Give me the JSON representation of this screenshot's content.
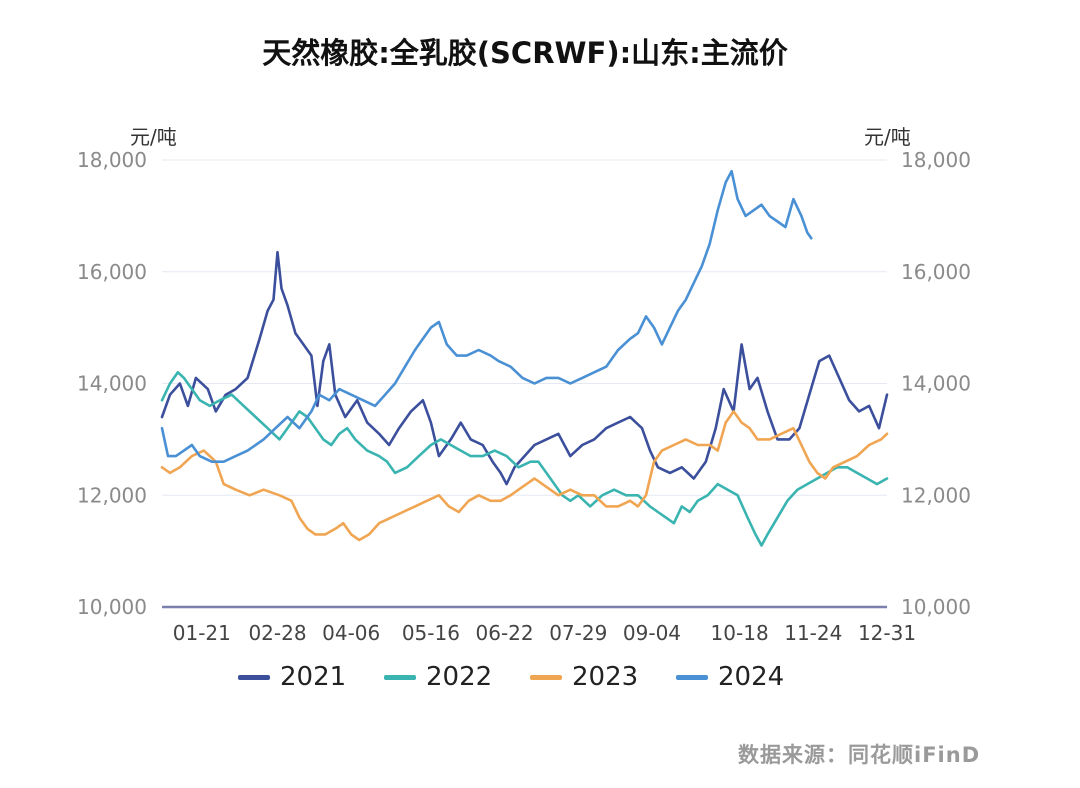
{
  "chart_data": {
    "type": "line",
    "title": "天然橡胶:全乳胶(SCRWF):山东:主流价",
    "ylabel_left": "元/吨",
    "ylabel_right": "元/吨",
    "ylim": [
      10000,
      18000
    ],
    "yticks": [
      "10,000",
      "12,000",
      "14,000",
      "16,000",
      "18,000"
    ],
    "x_tick_labels": [
      "01-21",
      "02-28",
      "04-06",
      "05-16",
      "06-22",
      "07-29",
      "09-04",
      "10-18",
      "11-24",
      "12-31"
    ],
    "x_tick_day": [
      21,
      59,
      96,
      136,
      173,
      210,
      247,
      291,
      328,
      365
    ],
    "x_domain_days": [
      1,
      365
    ],
    "grid": "horizontal",
    "legend_position": "bottom",
    "series": [
      {
        "name": "2021",
        "color": "#3b4f9c",
        "points": [
          [
            1,
            13400
          ],
          [
            5,
            13800
          ],
          [
            10,
            14000
          ],
          [
            14,
            13600
          ],
          [
            18,
            14100
          ],
          [
            24,
            13900
          ],
          [
            28,
            13500
          ],
          [
            33,
            13800
          ],
          [
            38,
            13900
          ],
          [
            44,
            14100
          ],
          [
            50,
            14800
          ],
          [
            54,
            15300
          ],
          [
            57,
            15500
          ],
          [
            59,
            16350
          ],
          [
            61,
            15700
          ],
          [
            64,
            15400
          ],
          [
            68,
            14900
          ],
          [
            72,
            14700
          ],
          [
            76,
            14500
          ],
          [
            79,
            13600
          ],
          [
            82,
            14400
          ],
          [
            85,
            14700
          ],
          [
            88,
            13800
          ],
          [
            93,
            13400
          ],
          [
            99,
            13700
          ],
          [
            104,
            13300
          ],
          [
            110,
            13100
          ],
          [
            115,
            12900
          ],
          [
            120,
            13200
          ],
          [
            126,
            13500
          ],
          [
            132,
            13700
          ],
          [
            136,
            13300
          ],
          [
            140,
            12700
          ],
          [
            146,
            13000
          ],
          [
            151,
            13300
          ],
          [
            156,
            13000
          ],
          [
            162,
            12900
          ],
          [
            167,
            12600
          ],
          [
            171,
            12400
          ],
          [
            174,
            12200
          ],
          [
            178,
            12500
          ],
          [
            183,
            12700
          ],
          [
            188,
            12900
          ],
          [
            194,
            13000
          ],
          [
            200,
            13100
          ],
          [
            206,
            12700
          ],
          [
            212,
            12900
          ],
          [
            218,
            13000
          ],
          [
            224,
            13200
          ],
          [
            230,
            13300
          ],
          [
            236,
            13400
          ],
          [
            242,
            13200
          ],
          [
            246,
            12800
          ],
          [
            250,
            12500
          ],
          [
            256,
            12400
          ],
          [
            262,
            12500
          ],
          [
            268,
            12300
          ],
          [
            274,
            12600
          ],
          [
            279,
            13200
          ],
          [
            283,
            13900
          ],
          [
            288,
            13500
          ],
          [
            292,
            14700
          ],
          [
            296,
            13900
          ],
          [
            300,
            14100
          ],
          [
            305,
            13500
          ],
          [
            310,
            13000
          ],
          [
            316,
            13000
          ],
          [
            321,
            13200
          ],
          [
            326,
            13800
          ],
          [
            331,
            14400
          ],
          [
            336,
            14500
          ],
          [
            341,
            14100
          ],
          [
            346,
            13700
          ],
          [
            351,
            13500
          ],
          [
            356,
            13600
          ],
          [
            361,
            13200
          ],
          [
            365,
            13800
          ]
        ]
      },
      {
        "name": "2022",
        "color": "#3ab4b0",
        "points": [
          [
            1,
            13700
          ],
          [
            5,
            14000
          ],
          [
            9,
            14200
          ],
          [
            12,
            14100
          ],
          [
            16,
            13900
          ],
          [
            20,
            13700
          ],
          [
            25,
            13600
          ],
          [
            30,
            13700
          ],
          [
            36,
            13800
          ],
          [
            42,
            13600
          ],
          [
            48,
            13400
          ],
          [
            54,
            13200
          ],
          [
            60,
            13000
          ],
          [
            66,
            13300
          ],
          [
            70,
            13500
          ],
          [
            74,
            13400
          ],
          [
            78,
            13200
          ],
          [
            82,
            13000
          ],
          [
            86,
            12900
          ],
          [
            90,
            13100
          ],
          [
            94,
            13200
          ],
          [
            98,
            13000
          ],
          [
            104,
            12800
          ],
          [
            110,
            12700
          ],
          [
            114,
            12600
          ],
          [
            118,
            12400
          ],
          [
            124,
            12500
          ],
          [
            130,
            12700
          ],
          [
            136,
            12900
          ],
          [
            141,
            13000
          ],
          [
            146,
            12900
          ],
          [
            151,
            12800
          ],
          [
            156,
            12700
          ],
          [
            162,
            12700
          ],
          [
            168,
            12800
          ],
          [
            174,
            12700
          ],
          [
            180,
            12500
          ],
          [
            186,
            12600
          ],
          [
            190,
            12600
          ],
          [
            194,
            12400
          ],
          [
            198,
            12200
          ],
          [
            202,
            12000
          ],
          [
            206,
            11900
          ],
          [
            210,
            12000
          ],
          [
            216,
            11800
          ],
          [
            222,
            12000
          ],
          [
            228,
            12100
          ],
          [
            234,
            12000
          ],
          [
            240,
            12000
          ],
          [
            246,
            11800
          ],
          [
            250,
            11700
          ],
          [
            254,
            11600
          ],
          [
            258,
            11500
          ],
          [
            262,
            11800
          ],
          [
            266,
            11700
          ],
          [
            270,
            11900
          ],
          [
            275,
            12000
          ],
          [
            280,
            12200
          ],
          [
            285,
            12100
          ],
          [
            290,
            12000
          ],
          [
            295,
            11600
          ],
          [
            299,
            11300
          ],
          [
            302,
            11100
          ],
          [
            305,
            11300
          ],
          [
            310,
            11600
          ],
          [
            315,
            11900
          ],
          [
            320,
            12100
          ],
          [
            325,
            12200
          ],
          [
            330,
            12300
          ],
          [
            335,
            12400
          ],
          [
            340,
            12500
          ],
          [
            345,
            12500
          ],
          [
            350,
            12400
          ],
          [
            355,
            12300
          ],
          [
            360,
            12200
          ],
          [
            365,
            12300
          ]
        ]
      },
      {
        "name": "2023",
        "color": "#f0a552",
        "points": [
          [
            1,
            12500
          ],
          [
            5,
            12400
          ],
          [
            10,
            12500
          ],
          [
            16,
            12700
          ],
          [
            22,
            12800
          ],
          [
            28,
            12600
          ],
          [
            32,
            12200
          ],
          [
            38,
            12100
          ],
          [
            45,
            12000
          ],
          [
            52,
            12100
          ],
          [
            60,
            12000
          ],
          [
            66,
            11900
          ],
          [
            70,
            11600
          ],
          [
            74,
            11400
          ],
          [
            78,
            11300
          ],
          [
            83,
            11300
          ],
          [
            88,
            11400
          ],
          [
            92,
            11500
          ],
          [
            96,
            11300
          ],
          [
            100,
            11200
          ],
          [
            105,
            11300
          ],
          [
            110,
            11500
          ],
          [
            116,
            11600
          ],
          [
            122,
            11700
          ],
          [
            128,
            11800
          ],
          [
            134,
            11900
          ],
          [
            140,
            12000
          ],
          [
            145,
            11800
          ],
          [
            150,
            11700
          ],
          [
            155,
            11900
          ],
          [
            160,
            12000
          ],
          [
            166,
            11900
          ],
          [
            171,
            11900
          ],
          [
            176,
            12000
          ],
          [
            180,
            12100
          ],
          [
            184,
            12200
          ],
          [
            188,
            12300
          ],
          [
            192,
            12200
          ],
          [
            196,
            12100
          ],
          [
            200,
            12000
          ],
          [
            206,
            12100
          ],
          [
            212,
            12000
          ],
          [
            218,
            12000
          ],
          [
            224,
            11800
          ],
          [
            230,
            11800
          ],
          [
            236,
            11900
          ],
          [
            240,
            11800
          ],
          [
            244,
            12000
          ],
          [
            248,
            12600
          ],
          [
            252,
            12800
          ],
          [
            258,
            12900
          ],
          [
            264,
            13000
          ],
          [
            270,
            12900
          ],
          [
            276,
            12900
          ],
          [
            280,
            12800
          ],
          [
            284,
            13300
          ],
          [
            288,
            13500
          ],
          [
            292,
            13300
          ],
          [
            296,
            13200
          ],
          [
            300,
            13000
          ],
          [
            306,
            13000
          ],
          [
            312,
            13100
          ],
          [
            318,
            13200
          ],
          [
            322,
            12900
          ],
          [
            326,
            12600
          ],
          [
            330,
            12400
          ],
          [
            334,
            12300
          ],
          [
            338,
            12500
          ],
          [
            344,
            12600
          ],
          [
            350,
            12700
          ],
          [
            356,
            12900
          ],
          [
            362,
            13000
          ],
          [
            365,
            13100
          ]
        ]
      },
      {
        "name": "2024",
        "color": "#4a90d4",
        "points": [
          [
            1,
            13200
          ],
          [
            4,
            12700
          ],
          [
            8,
            12700
          ],
          [
            12,
            12800
          ],
          [
            16,
            12900
          ],
          [
            20,
            12700
          ],
          [
            26,
            12600
          ],
          [
            32,
            12600
          ],
          [
            38,
            12700
          ],
          [
            44,
            12800
          ],
          [
            52,
            13000
          ],
          [
            58,
            13200
          ],
          [
            64,
            13400
          ],
          [
            70,
            13200
          ],
          [
            76,
            13500
          ],
          [
            80,
            13800
          ],
          [
            85,
            13700
          ],
          [
            90,
            13900
          ],
          [
            96,
            13800
          ],
          [
            102,
            13700
          ],
          [
            108,
            13600
          ],
          [
            113,
            13800
          ],
          [
            118,
            14000
          ],
          [
            123,
            14300
          ],
          [
            128,
            14600
          ],
          [
            132,
            14800
          ],
          [
            136,
            15000
          ],
          [
            140,
            15100
          ],
          [
            144,
            14700
          ],
          [
            149,
            14500
          ],
          [
            154,
            14500
          ],
          [
            160,
            14600
          ],
          [
            166,
            14500
          ],
          [
            170,
            14400
          ],
          [
            176,
            14300
          ],
          [
            182,
            14100
          ],
          [
            188,
            14000
          ],
          [
            194,
            14100
          ],
          [
            200,
            14100
          ],
          [
            206,
            14000
          ],
          [
            212,
            14100
          ],
          [
            218,
            14200
          ],
          [
            224,
            14300
          ],
          [
            230,
            14600
          ],
          [
            236,
            14800
          ],
          [
            240,
            14900
          ],
          [
            244,
            15200
          ],
          [
            248,
            15000
          ],
          [
            252,
            14700
          ],
          [
            256,
            15000
          ],
          [
            260,
            15300
          ],
          [
            264,
            15500
          ],
          [
            268,
            15800
          ],
          [
            272,
            16100
          ],
          [
            276,
            16500
          ],
          [
            280,
            17100
          ],
          [
            284,
            17600
          ],
          [
            287,
            17800
          ],
          [
            290,
            17300
          ],
          [
            294,
            17000
          ],
          [
            298,
            17100
          ],
          [
            302,
            17200
          ],
          [
            306,
            17000
          ],
          [
            310,
            16900
          ],
          [
            314,
            16800
          ],
          [
            318,
            17300
          ],
          [
            322,
            17000
          ],
          [
            325,
            16700
          ],
          [
            327,
            16600
          ]
        ]
      }
    ]
  },
  "source_text": "数据来源：同花顺iFinD"
}
